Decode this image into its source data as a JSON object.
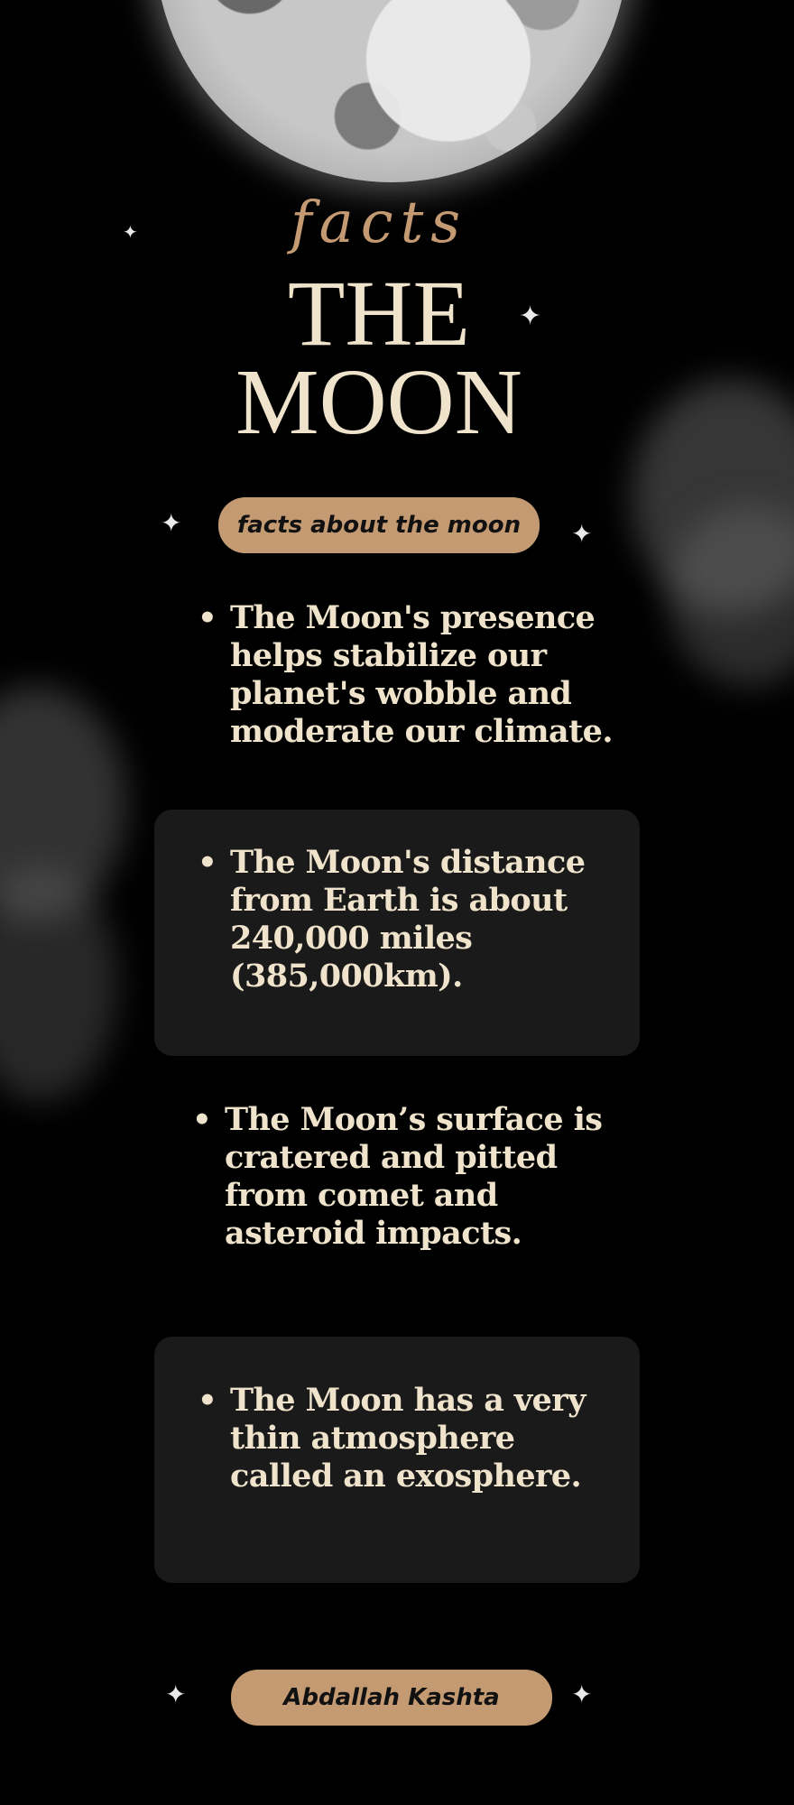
{
  "header": {
    "script_word": "facts",
    "title_line_1": "THE",
    "title_line_2": "MOON",
    "subtitle": "facts about the moon"
  },
  "facts": [
    "The Moon's presence helps stabilize our planet's wobble and moderate our climate.",
    "The Moon's distance from Earth is about 240,000 miles (385,000km).",
    "The Moon’s surface is cratered and pitted from comet and asteroid impacts.",
    "The Moon has a very thin atmosphere called an exosphere."
  ],
  "footer": {
    "author": "Abdallah Kashta"
  },
  "colors": {
    "background": "#000000",
    "accent": "#c49a72",
    "text": "#efe3cc",
    "card": "#1a1a1a"
  },
  "icons": [
    "moon-icon",
    "sparkle-icon",
    "cloud-icon"
  ]
}
